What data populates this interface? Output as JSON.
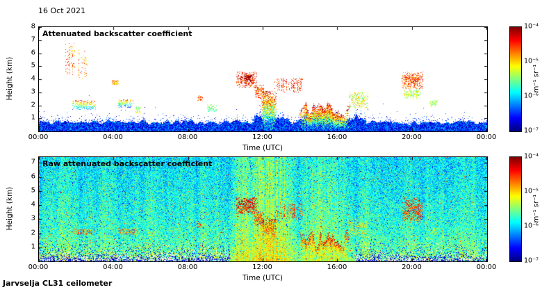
{
  "page": {
    "date_label": "16 Oct 2021",
    "footer_label": "Jarvselja CL31 ceilometer",
    "background": "#ffffff",
    "text_color": "#000000"
  },
  "chart_data": [
    {
      "type": "heatmap",
      "title": "Attenuated backscatter coefficient",
      "xlabel": "Time (UTC)",
      "ylabel": "Height (km)",
      "x_ticks": [
        "00:00",
        "04:00",
        "08:00",
        "12:00",
        "16:00",
        "20:00",
        "00:00"
      ],
      "x_range_hours": [
        0,
        24
      ],
      "y_ticks": [
        8,
        7,
        6,
        5,
        4,
        3,
        2,
        1
      ],
      "y_max": 8,
      "grid": false,
      "legend": "colorbar-right",
      "colorbar": {
        "ticks": [
          "10⁻⁴",
          "10⁻⁵",
          "10⁻⁶",
          "10⁻⁷"
        ],
        "units": "m⁻¹ sr⁻¹",
        "scale": "log10",
        "range_min": "1e-7",
        "range_max": "1e-4",
        "colormap": "jet"
      },
      "render": {
        "style": "sparse",
        "seed": 11,
        "bl_base": 0.45,
        "bl_var": 0.45,
        "bl_bump": 0.7,
        "bl_bump_t": [
          11.5,
          17.5
        ],
        "features": [
          {
            "t": [
              1.35,
              1.9
            ],
            "h": [
              4.3,
              6.8
            ],
            "v": 0.75,
            "spread": 0.15,
            "density": 0.3,
            "streaky": true,
            "note": "high cloud wisps"
          },
          {
            "t": [
              2.05,
              2.6
            ],
            "h": [
              4.1,
              6.3
            ],
            "v": 0.72,
            "spread": 0.15,
            "density": 0.28,
            "streaky": true
          },
          {
            "t": [
              1.75,
              3.05
            ],
            "h": [
              1.7,
              2.45
            ],
            "v": 0.55,
            "spread": 0.12,
            "density": 0.55,
            "grad": true
          },
          {
            "t": [
              3.9,
              4.25
            ],
            "h": [
              3.6,
              3.95
            ],
            "v": 0.7,
            "spread": 0.1,
            "density": 0.7
          },
          {
            "t": [
              4.2,
              5.05
            ],
            "h": [
              1.85,
              2.5
            ],
            "v": 0.5,
            "spread": 0.12,
            "density": 0.5,
            "grad": true
          },
          {
            "t": [
              5.1,
              5.45
            ],
            "h": [
              1.4,
              1.95
            ],
            "v": 0.52,
            "spread": 0.12,
            "density": 0.5
          },
          {
            "t": [
              8.45,
              8.75
            ],
            "h": [
              2.4,
              2.78
            ],
            "v": 0.8,
            "spread": 0.1,
            "density": 0.6
          },
          {
            "t": [
              9.0,
              9.55
            ],
            "h": [
              1.5,
              2.1
            ],
            "v": 0.5,
            "spread": 0.12,
            "density": 0.5
          },
          {
            "t": [
              10.55,
              11.65
            ],
            "h": [
              3.4,
              4.6
            ],
            "v": 0.86,
            "spread": 0.12,
            "density": 0.5,
            "note": "mid-level cloud"
          },
          {
            "t": [
              11.0,
              11.35
            ],
            "h": [
              3.85,
              4.35
            ],
            "v": 0.97,
            "spread": 0.04,
            "density": 0.85
          },
          {
            "t": [
              11.5,
              12.05
            ],
            "h": [
              2.55,
              3.6
            ],
            "v": 0.8,
            "spread": 0.1,
            "density": 0.5
          },
          {
            "t": [
              11.9,
              12.7
            ],
            "h": [
              0.15,
              3.1
            ],
            "v": 0.55,
            "spread": 0.22,
            "density": 0.8,
            "grad": true,
            "note": "precipitation column"
          },
          {
            "t": [
              12.6,
              14.15
            ],
            "h": [
              3.0,
              4.15
            ],
            "v": 0.82,
            "spread": 0.1,
            "density": 0.4,
            "streaky": true
          },
          {
            "t": [
              13.95,
              16.6
            ],
            "h": [
              0.2,
              2.7
            ],
            "v": 0.6,
            "spread": 0.18,
            "density": 0.85,
            "spiky": true,
            "grad": true,
            "note": "low cloud and rain"
          },
          {
            "t": [
              16.55,
              17.6
            ],
            "h": [
              1.8,
              3.05
            ],
            "v": 0.6,
            "spread": 0.15,
            "density": 0.45
          },
          {
            "t": [
              19.4,
              20.55
            ],
            "h": [
              3.3,
              4.6
            ],
            "v": 0.8,
            "spread": 0.12,
            "density": 0.55,
            "note": "evening cloud"
          },
          {
            "t": [
              19.5,
              20.4
            ],
            "h": [
              2.55,
              3.3
            ],
            "v": 0.55,
            "spread": 0.12,
            "density": 0.5
          },
          {
            "t": [
              20.9,
              21.35
            ],
            "h": [
              1.9,
              2.45
            ],
            "v": 0.52,
            "spread": 0.1,
            "density": 0.5
          }
        ]
      }
    },
    {
      "type": "heatmap",
      "title": "Raw attenuated backscatter coefficient",
      "xlabel": "Time (UTC)",
      "ylabel": "Height (km)",
      "x_ticks": [
        "00:00",
        "04:00",
        "08:00",
        "12:00",
        "16:00",
        "20:00",
        "00:00"
      ],
      "x_range_hours": [
        0,
        24
      ],
      "y_ticks": [
        7,
        6,
        5,
        4,
        3,
        2,
        1
      ],
      "y_max": 7.42,
      "grid": false,
      "legend": "colorbar-right",
      "colorbar": {
        "ticks": [
          "10⁻⁴",
          "10⁻⁵",
          "10⁻⁶",
          "10⁻⁷"
        ],
        "units": "m⁻¹ sr⁻¹",
        "scale": "log10",
        "range_min": "1e-7",
        "range_max": "1e-4",
        "colormap": "jet"
      },
      "render": {
        "style": "dense",
        "seed": 23,
        "base": 0.44,
        "noise": 0.12,
        "hfade": 0.08,
        "low_boost": 0.09,
        "streaks": [
          {
            "t": [
              10.2,
              13.7
            ],
            "boost": 0.2,
            "note": "midday noise / rain streaks"
          },
          {
            "t": [
              13.7,
              16.8
            ],
            "boost": 0.07
          }
        ],
        "low_clear": [
          {
            "t": [
              0,
              10.2
            ],
            "scale": 0.45
          },
          {
            "t": [
              16.9,
              24
            ],
            "scale": 0.4
          }
        ],
        "features": [
          {
            "t": [
              1.8,
              3.0
            ],
            "h": [
              1.9,
              2.35
            ],
            "v": 0.78,
            "spread": 0.12,
            "density": 0.45
          },
          {
            "t": [
              4.2,
              5.3
            ],
            "h": [
              1.9,
              2.4
            ],
            "v": 0.75,
            "spread": 0.12,
            "density": 0.4
          },
          {
            "t": [
              8.45,
              8.75
            ],
            "h": [
              2.4,
              2.78
            ],
            "v": 0.78,
            "spread": 0.1,
            "density": 0.5
          },
          {
            "t": [
              10.55,
              11.65
            ],
            "h": [
              3.4,
              4.6
            ],
            "v": 0.88,
            "spread": 0.1,
            "density": 0.55
          },
          {
            "t": [
              11.5,
              12.05
            ],
            "h": [
              2.55,
              3.6
            ],
            "v": 0.82,
            "spread": 0.1,
            "density": 0.5
          },
          {
            "t": [
              11.9,
              12.7
            ],
            "h": [
              0.15,
              3.1
            ],
            "v": 0.6,
            "spread": 0.2,
            "density": 0.7,
            "grad": true
          },
          {
            "t": [
              12.6,
              14.15
            ],
            "h": [
              3.0,
              4.15
            ],
            "v": 0.82,
            "spread": 0.1,
            "density": 0.4,
            "streaky": true
          },
          {
            "t": [
              13.95,
              16.6
            ],
            "h": [
              0.2,
              2.7
            ],
            "v": 0.62,
            "spread": 0.16,
            "density": 0.8,
            "spiky": true,
            "grad": true
          },
          {
            "t": [
              16.55,
              17.6
            ],
            "h": [
              1.8,
              3.05
            ],
            "v": 0.62,
            "spread": 0.14,
            "density": 0.4
          },
          {
            "t": [
              19.4,
              20.55
            ],
            "h": [
              2.8,
              4.6
            ],
            "v": 0.82,
            "spread": 0.12,
            "density": 0.45
          },
          {
            "t": [
              20.9,
              21.35
            ],
            "h": [
              1.9,
              2.45
            ],
            "v": 0.6,
            "spread": 0.1,
            "density": 0.4
          }
        ]
      }
    }
  ]
}
